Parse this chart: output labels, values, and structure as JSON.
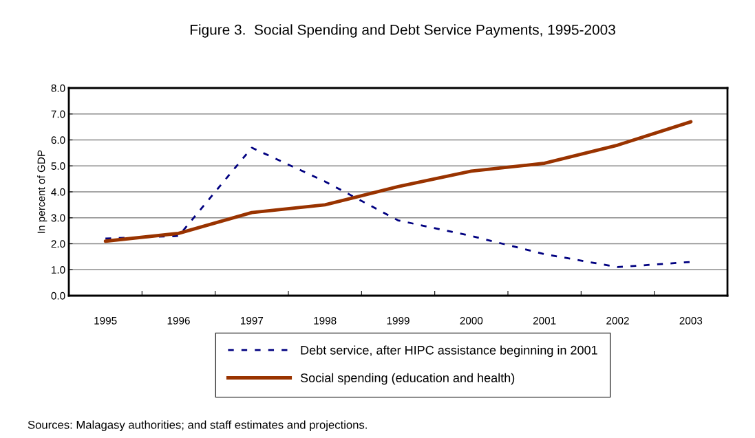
{
  "chart_data": {
    "type": "line",
    "title": "Figure 3.  Social Spending and Debt Service Payments, 1995-2003",
    "ylabel": "In percent of GDP",
    "categories": [
      "1995",
      "1996",
      "1997",
      "1998",
      "1999",
      "2000",
      "2001",
      "2002",
      "2003"
    ],
    "series": [
      {
        "name": "Debt service, after HIPC assistance beginning in 2001",
        "color": "#000080",
        "line_style": "dashed",
        "values": [
          2.2,
          2.3,
          5.7,
          4.4,
          2.9,
          2.3,
          1.6,
          1.1,
          1.3
        ]
      },
      {
        "name": "Social spending (education and health)",
        "color": "#993300",
        "line_style": "solid",
        "values": [
          2.1,
          2.4,
          3.2,
          3.5,
          4.2,
          4.8,
          5.1,
          5.8,
          6.7
        ]
      }
    ],
    "ylim": [
      0,
      8
    ],
    "yticks": [
      {
        "value": 0,
        "label": "0.0"
      },
      {
        "value": 1,
        "label": "1.0"
      },
      {
        "value": 2,
        "label": "2.0"
      },
      {
        "value": 3,
        "label": "3.0"
      },
      {
        "value": 4,
        "label": "4.0"
      },
      {
        "value": 5,
        "label": "5.0"
      },
      {
        "value": 6,
        "label": "6.0"
      },
      {
        "value": 7,
        "label": "7.0"
      },
      {
        "value": 8,
        "label": "8.0"
      }
    ],
    "grid": "y",
    "legend": "bottom",
    "marker": "none",
    "annotations": [
      "Sources: Malagasy authorities; and staff estimates and projections."
    ]
  }
}
